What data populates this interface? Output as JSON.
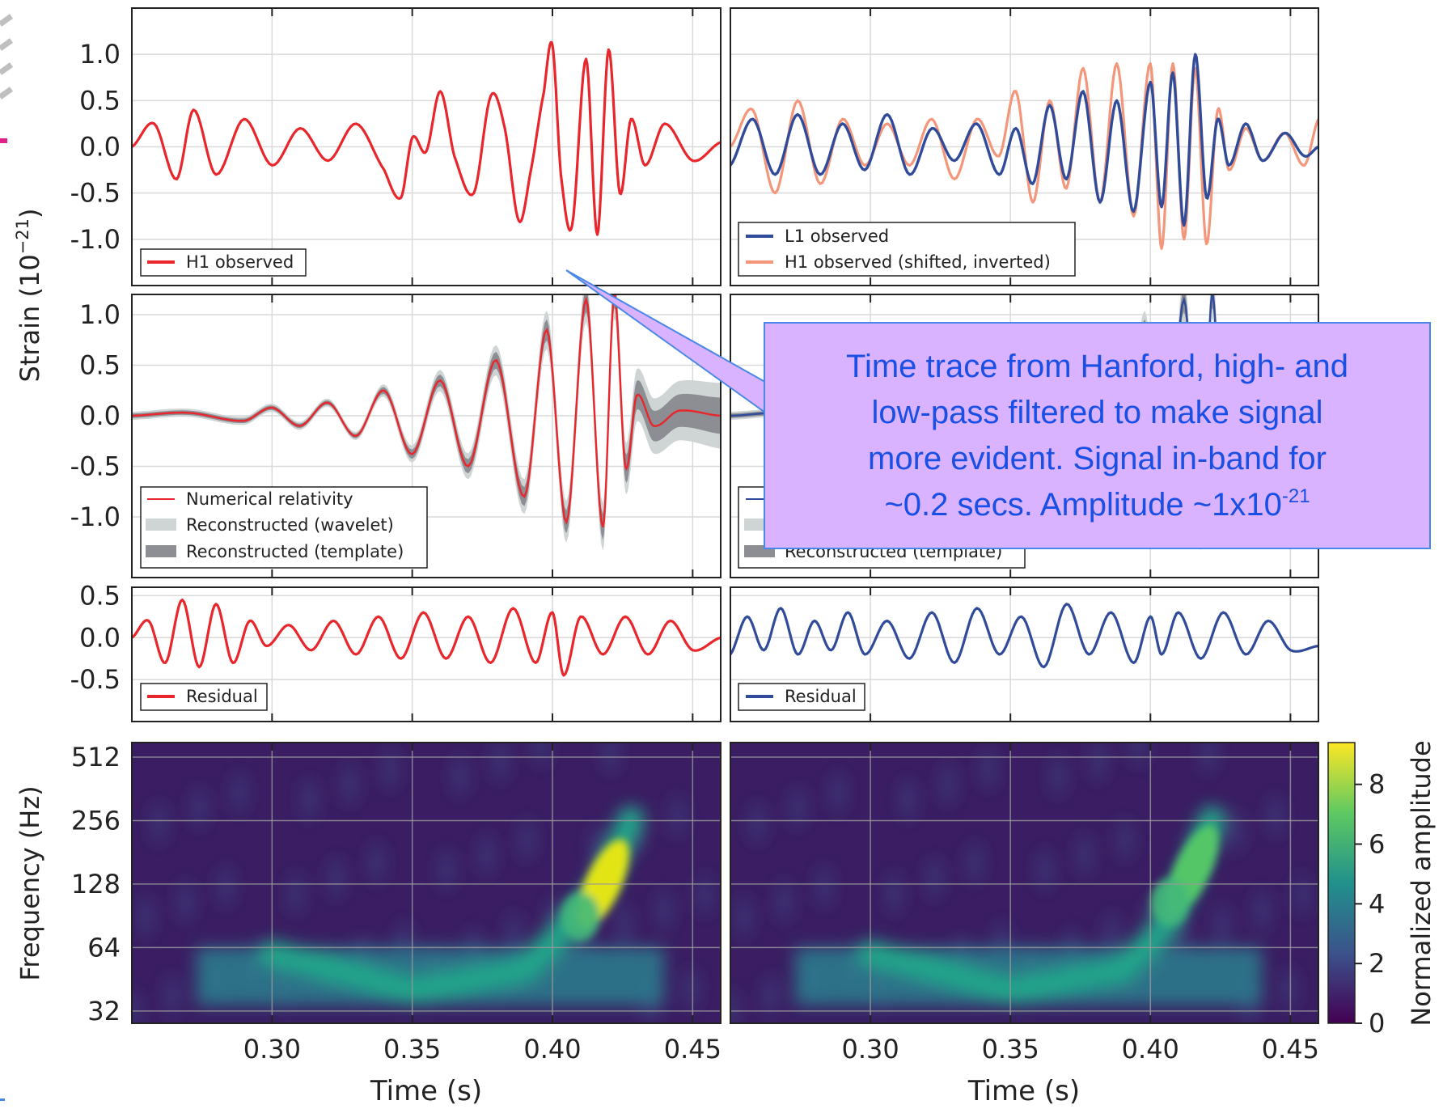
{
  "chart_data": [
    {
      "type": "line",
      "panel": "top-left",
      "ylim": [
        -1.5,
        1.5
      ],
      "xlim": [
        0.25,
        0.46
      ],
      "yticks": [
        "1.0",
        "0.5",
        "0.0",
        "-0.5",
        "-1.0"
      ],
      "series": [
        {
          "name": "H1 observed",
          "color": "#e8262b",
          "x": [
            0.25,
            0.258,
            0.266,
            0.272,
            0.28,
            0.29,
            0.3,
            0.31,
            0.32,
            0.33,
            0.34,
            0.346,
            0.35,
            0.355,
            0.36,
            0.365,
            0.372,
            0.378,
            0.383,
            0.388,
            0.392,
            0.397,
            0.4,
            0.403,
            0.407,
            0.412,
            0.416,
            0.42,
            0.424,
            0.428,
            0.433,
            0.44,
            0.45,
            0.46
          ],
          "y": [
            0.0,
            0.25,
            -0.35,
            0.4,
            -0.3,
            0.3,
            -0.2,
            0.2,
            -0.15,
            0.25,
            -0.25,
            -0.55,
            0.1,
            -0.05,
            0.6,
            -0.1,
            -0.5,
            0.55,
            0.2,
            -0.8,
            -0.3,
            0.6,
            1.1,
            -0.3,
            -0.85,
            0.95,
            -0.95,
            1.05,
            -0.5,
            0.3,
            -0.2,
            0.25,
            -0.15,
            0.05
          ]
        }
      ]
    },
    {
      "type": "line",
      "panel": "top-right",
      "ylim": [
        -1.5,
        1.5
      ],
      "xlim": [
        0.25,
        0.46
      ],
      "series": [
        {
          "name": "L1 observed",
          "color": "#2f4b9a",
          "x": [
            0.25,
            0.258,
            0.266,
            0.274,
            0.282,
            0.29,
            0.298,
            0.306,
            0.314,
            0.322,
            0.33,
            0.338,
            0.346,
            0.352,
            0.358,
            0.364,
            0.37,
            0.376,
            0.382,
            0.388,
            0.394,
            0.4,
            0.404,
            0.408,
            0.412,
            0.416,
            0.42,
            0.424,
            0.428,
            0.434,
            0.44,
            0.448,
            0.455,
            0.46
          ],
          "y": [
            -0.2,
            0.3,
            -0.3,
            0.35,
            -0.3,
            0.25,
            -0.25,
            0.35,
            -0.3,
            0.2,
            -0.15,
            0.25,
            -0.3,
            0.2,
            -0.4,
            0.45,
            -0.35,
            0.6,
            -0.6,
            0.5,
            -0.7,
            0.7,
            -0.65,
            0.8,
            -0.85,
            1.0,
            -0.55,
            0.3,
            -0.2,
            0.25,
            -0.15,
            0.15,
            -0.1,
            0.0
          ]
        },
        {
          "name": "H1 observed (shifted, inverted)",
          "color": "#f4967a",
          "x": [
            0.25,
            0.258,
            0.266,
            0.274,
            0.282,
            0.29,
            0.298,
            0.306,
            0.314,
            0.322,
            0.33,
            0.338,
            0.346,
            0.352,
            0.358,
            0.364,
            0.37,
            0.376,
            0.382,
            0.388,
            0.394,
            0.4,
            0.404,
            0.408,
            0.412,
            0.416,
            0.42,
            0.424,
            0.428,
            0.434,
            0.44,
            0.448,
            0.455,
            0.46
          ],
          "y": [
            0.0,
            0.4,
            -0.5,
            0.5,
            -0.4,
            0.3,
            -0.2,
            0.25,
            -0.2,
            0.3,
            -0.35,
            0.3,
            -0.1,
            0.6,
            -0.6,
            0.5,
            -0.45,
            0.85,
            -0.6,
            0.9,
            -0.75,
            0.9,
            -1.1,
            0.9,
            -1.0,
            0.85,
            -1.05,
            0.4,
            -0.25,
            0.2,
            -0.15,
            0.15,
            -0.2,
            0.3
          ]
        }
      ]
    },
    {
      "type": "line",
      "panel": "middle-left",
      "ylim": [
        -1.6,
        1.2
      ],
      "xlim": [
        0.25,
        0.46
      ],
      "yticks": [
        "1.0",
        "0.5",
        "0.0",
        "-0.5",
        "-1.0"
      ],
      "series": [
        {
          "name": "Numerical relativity",
          "color": "#e8262b",
          "x": [
            0.25,
            0.27,
            0.29,
            0.3,
            0.31,
            0.32,
            0.33,
            0.34,
            0.35,
            0.36,
            0.37,
            0.38,
            0.39,
            0.398,
            0.405,
            0.412,
            0.418,
            0.422,
            0.426,
            0.43,
            0.436,
            0.445,
            0.46
          ],
          "y": [
            0.0,
            0.03,
            -0.05,
            0.08,
            -0.1,
            0.13,
            -0.2,
            0.25,
            -0.38,
            0.35,
            -0.5,
            0.55,
            -0.8,
            0.85,
            -1.05,
            1.15,
            -1.1,
            1.2,
            -0.5,
            0.2,
            -0.1,
            0.05,
            0.0
          ]
        },
        {
          "name": "Reconstructed (wavelet)",
          "color": "#cfd4d4"
        },
        {
          "name": "Reconstructed (template)",
          "color": "#8c8e94"
        }
      ]
    },
    {
      "type": "line",
      "panel": "middle-right",
      "ylim": [
        -1.6,
        1.2
      ],
      "xlim": [
        0.25,
        0.46
      ],
      "series": [
        {
          "name": "",
          "color": "#2f4b9a"
        },
        {
          "name": "",
          "color": "#cfd4d4"
        },
        {
          "name": "Reconstructed (template)",
          "color": "#8c8e94"
        }
      ]
    },
    {
      "type": "line",
      "panel": "residual-left",
      "ylim": [
        -1.0,
        0.6
      ],
      "xlim": [
        0.25,
        0.46
      ],
      "yticks": [
        "0.5",
        "0.0",
        "-0.5"
      ],
      "series": [
        {
          "name": "Residual",
          "color": "#e8262b",
          "x": [
            0.25,
            0.256,
            0.262,
            0.268,
            0.274,
            0.28,
            0.286,
            0.292,
            0.298,
            0.306,
            0.314,
            0.322,
            0.33,
            0.338,
            0.346,
            0.354,
            0.362,
            0.37,
            0.378,
            0.386,
            0.394,
            0.4,
            0.404,
            0.41,
            0.418,
            0.426,
            0.434,
            0.442,
            0.45,
            0.46
          ],
          "y": [
            0.0,
            0.2,
            -0.3,
            0.45,
            -0.35,
            0.4,
            -0.3,
            0.2,
            -0.1,
            0.15,
            -0.15,
            0.2,
            -0.2,
            0.25,
            -0.25,
            0.3,
            -0.25,
            0.25,
            -0.3,
            0.35,
            -0.3,
            0.3,
            -0.45,
            0.25,
            -0.2,
            0.25,
            -0.2,
            0.2,
            -0.15,
            0.0
          ]
        }
      ]
    },
    {
      "type": "line",
      "panel": "residual-right",
      "ylim": [
        -1.0,
        0.6
      ],
      "xlim": [
        0.25,
        0.46
      ],
      "series": [
        {
          "name": "Residual",
          "color": "#2f4b9a",
          "x": [
            0.25,
            0.256,
            0.262,
            0.268,
            0.274,
            0.28,
            0.286,
            0.292,
            0.298,
            0.306,
            0.314,
            0.322,
            0.33,
            0.338,
            0.346,
            0.354,
            0.362,
            0.37,
            0.378,
            0.386,
            0.394,
            0.4,
            0.404,
            0.41,
            0.418,
            0.426,
            0.434,
            0.442,
            0.45,
            0.46
          ],
          "y": [
            -0.2,
            0.25,
            -0.15,
            0.35,
            -0.2,
            0.2,
            -0.15,
            0.3,
            -0.2,
            0.2,
            -0.25,
            0.3,
            -0.3,
            0.35,
            -0.2,
            0.25,
            -0.35,
            0.4,
            -0.2,
            0.3,
            -0.3,
            0.25,
            -0.2,
            0.3,
            -0.25,
            0.3,
            -0.2,
            0.2,
            -0.15,
            -0.1
          ]
        }
      ]
    },
    {
      "type": "heatmap",
      "panel": "spectrogram-left",
      "xlim": [
        0.25,
        0.46
      ],
      "yscale": "log2",
      "ylim": [
        28,
        600
      ],
      "yticks": [
        512,
        256,
        128,
        64,
        32
      ],
      "peak": {
        "time": 0.418,
        "frequency": 128,
        "amplitude": 9
      },
      "track": {
        "time": [
          0.3,
          0.35,
          0.39,
          0.405,
          0.418,
          0.428
        ],
        "frequency": [
          60,
          40,
          50,
          80,
          128,
          260
        ]
      }
    },
    {
      "type": "heatmap",
      "panel": "spectrogram-right",
      "xlim": [
        0.25,
        0.46
      ],
      "yscale": "log2",
      "ylim": [
        28,
        600
      ],
      "peak": {
        "time": 0.415,
        "frequency": 150,
        "amplitude": 6
      },
      "track": {
        "time": [
          0.3,
          0.35,
          0.39,
          0.405,
          0.415,
          0.422
        ],
        "frequency": [
          60,
          40,
          50,
          80,
          150,
          260
        ]
      }
    }
  ],
  "labels": {
    "strain_ylabel": "Strain (10",
    "strain_ylabel_exp": "−21",
    "strain_ylabel_close": ")",
    "freq_ylabel": "Frequency (Hz)",
    "xlabel": "Time (s)",
    "xticks": [
      "0.30",
      "0.35",
      "0.40",
      "0.45"
    ],
    "colorbar_label": "Normalized amplitude",
    "colorbar_ticks": [
      "8",
      "6",
      "4",
      "2",
      "0"
    ]
  },
  "callout": {
    "lines": [
      "Time trace from Hanford, high- and",
      "low-pass filtered to make signal",
      "more evident. Signal in-band for",
      "~0.2 secs. Amplitude ~1x10"
    ],
    "exponent": "-21"
  },
  "colors": {
    "h1_red": "#e8262b",
    "l1_blue": "#2f4b9a",
    "h1_shifted": "#f4967a",
    "callout_bg": "#d9b3ff",
    "callout_text": "#1a4fe6"
  }
}
